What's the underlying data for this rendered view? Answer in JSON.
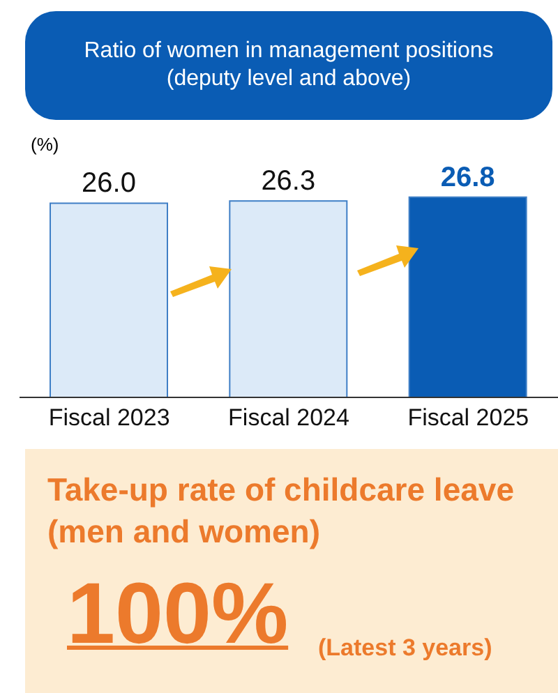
{
  "chart_data": [
    {
      "type": "bar",
      "title": "Ratio of women in management positions (deputy level and above)",
      "ylabel": "(%)",
      "categories": [
        "Fiscal 2023",
        "Fiscal 2024",
        "Fiscal 2025"
      ],
      "values": [
        26.0,
        26.3,
        26.8
      ],
      "value_labels": [
        "26.0",
        "26.3",
        "26.8"
      ],
      "colors": [
        "#dceaf8",
        "#dceaf8",
        "#0a5cb4"
      ],
      "tick_labels": "x",
      "grid": false
    },
    {
      "type": "other",
      "title": "Take-up rate of childcare leave (men and women)",
      "annotations": [
        "100%",
        "(Latest 3 years)"
      ]
    }
  ]
}
